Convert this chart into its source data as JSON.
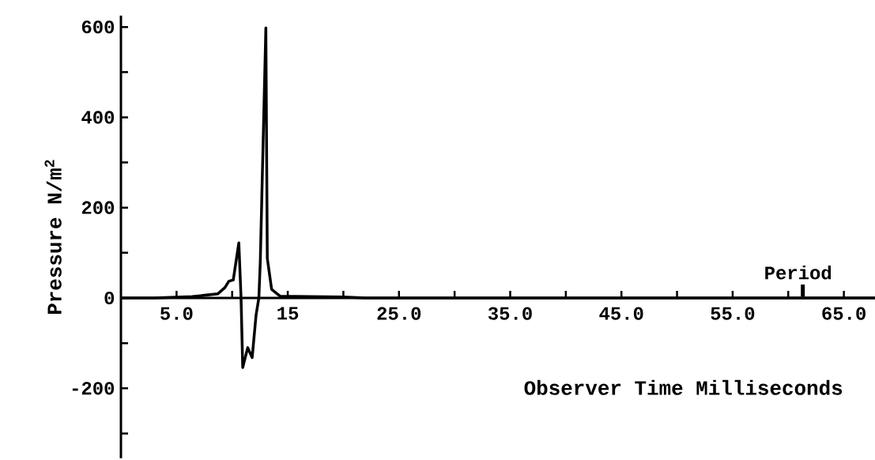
{
  "chart_data": {
    "type": "line",
    "xlabel": "Observer Time Milliseconds",
    "ylabel": "Pressure N/m$^{2}$",
    "x": [
      0,
      3,
      6.4,
      8.7,
      9.35,
      9.7,
      10.1,
      10.6,
      10.8,
      10.95,
      11.4,
      11.8,
      12.15,
      12.4,
      12.53,
      13.03,
      13.16,
      13.55,
      14.3,
      17,
      20,
      22,
      67.8
    ],
    "series": [
      {
        "color": "#000000",
        "values": [
          0,
          0,
          3,
          9,
          23,
          37,
          40,
          122,
          0,
          -154,
          -110,
          -132,
          -38,
          0,
          81,
          598,
          88,
          19,
          4,
          3,
          2,
          0,
          0
        ]
      }
    ],
    "xlim": [
      0,
      67.8
    ],
    "ylim": [
      -355,
      625
    ],
    "xticks": [
      {
        "value": 5,
        "label": "5.0"
      },
      {
        "value": 10,
        "label": null
      },
      {
        "value": 15,
        "label": "15"
      },
      {
        "value": 20,
        "label": null
      },
      {
        "value": 25,
        "label": "25.0"
      },
      {
        "value": 30,
        "label": null
      },
      {
        "value": 35,
        "label": "35.0"
      },
      {
        "value": 40,
        "label": null
      },
      {
        "value": 45,
        "label": "45.0"
      },
      {
        "value": 50,
        "label": null
      },
      {
        "value": 55,
        "label": "55.0"
      },
      {
        "value": 60,
        "label": null
      },
      {
        "value": 65,
        "label": "65.0"
      }
    ],
    "yticks": [
      {
        "value": -300,
        "label": null
      },
      -200,
      {
        "value": -100,
        "label": null
      },
      0,
      {
        "value": 100,
        "label": null
      },
      200,
      {
        "value": 300,
        "label": null
      },
      400,
      {
        "value": 500,
        "label": null
      },
      600
    ],
    "annotations": [
      "Period"
    ],
    "line_style": "solid",
    "marker": "none"
  }
}
